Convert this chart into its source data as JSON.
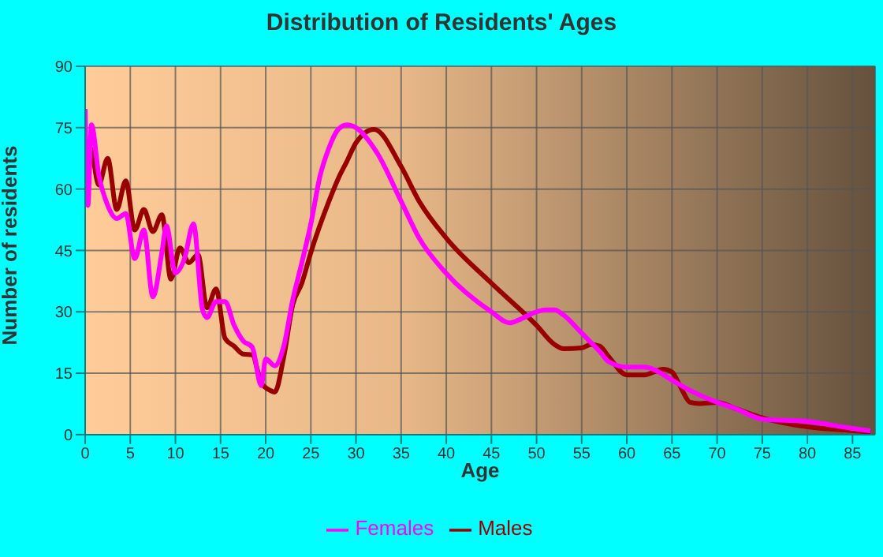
{
  "chart_data": {
    "type": "line",
    "title": "Distribution of Residents' Ages",
    "xlabel": "Age",
    "ylabel": "Number of residents",
    "xlim": [
      0,
      87.5
    ],
    "xticks": [
      0,
      5,
      10,
      15,
      20,
      25,
      30,
      35,
      40,
      45,
      50,
      55,
      60,
      65,
      70,
      75,
      80,
      85
    ],
    "ylim": [
      0,
      90
    ],
    "yticks": [
      0,
      15,
      30,
      45,
      60,
      75,
      90
    ],
    "grid": true,
    "legend": "bottom",
    "marker": "none",
    "line_style": "solid",
    "series": [
      {
        "name": "Males",
        "color": "#990000",
        "x": [
          0,
          0.3,
          0.6,
          1.5,
          2.5,
          3.5,
          4.5,
          5.5,
          6.5,
          7.5,
          8.5,
          9.5,
          10.5,
          11.5,
          12.5,
          13.5,
          14.5,
          15.5,
          16.5,
          17.5,
          18.5,
          19.5,
          20.5,
          21,
          22,
          23,
          24,
          25,
          27,
          28,
          29,
          30,
          32,
          35,
          37,
          40,
          45,
          50,
          52,
          53,
          55,
          56,
          57,
          58,
          60,
          62,
          63,
          64,
          65,
          66,
          67,
          68,
          70,
          72,
          75,
          80,
          85,
          87
        ],
        "values": [
          66,
          61,
          70,
          61,
          67.5,
          55,
          62,
          50,
          55,
          49.6,
          53.7,
          38,
          45.6,
          42,
          44,
          31,
          35.6,
          23.5,
          21.6,
          19.7,
          19.5,
          12.7,
          10.8,
          10.4,
          19,
          31.8,
          37,
          44.5,
          57,
          62.4,
          66.8,
          71.3,
          74.6,
          65.5,
          57,
          48,
          37,
          26.7,
          22,
          21,
          21.2,
          22,
          21.6,
          19,
          14.6,
          14.6,
          15.3,
          16,
          15.3,
          11.4,
          7.9,
          7.6,
          7.9,
          6.4,
          4.1,
          1.9,
          1,
          0.6
        ]
      },
      {
        "name": "Females",
        "color": "#ff00ff",
        "x": [
          0,
          0.3,
          0.7,
          1.5,
          2.5,
          3.5,
          4.5,
          5.5,
          6.5,
          7.5,
          8.5,
          9,
          10,
          11,
          12,
          13,
          13.5,
          14.5,
          15.5,
          16.5,
          17.5,
          18.5,
          19.5,
          20,
          21,
          22,
          23,
          24,
          25,
          26,
          27,
          28,
          29,
          30,
          32.4,
          35,
          37,
          40,
          45,
          47,
          48,
          50,
          51,
          52,
          53,
          55,
          57,
          58,
          60,
          62,
          63,
          65,
          67,
          70,
          72,
          75,
          80,
          85,
          87
        ],
        "values": [
          79.6,
          56,
          75.7,
          63.6,
          56,
          52.8,
          54,
          43,
          50,
          33.7,
          44.5,
          51,
          39.5,
          43,
          51.5,
          30.5,
          28.6,
          32.5,
          32.5,
          26.7,
          22.9,
          21.4,
          12,
          18.5,
          16.8,
          21.6,
          33,
          42,
          51.5,
          63,
          70,
          74.5,
          75.7,
          75,
          68.6,
          57,
          48,
          39.4,
          30,
          27.3,
          28,
          30,
          30.5,
          30.5,
          29.2,
          24.8,
          20.3,
          17.8,
          16.5,
          16.5,
          15.9,
          13.3,
          10.8,
          7.9,
          6.4,
          3.8,
          3.2,
          1.5,
          0.9
        ]
      }
    ]
  }
}
